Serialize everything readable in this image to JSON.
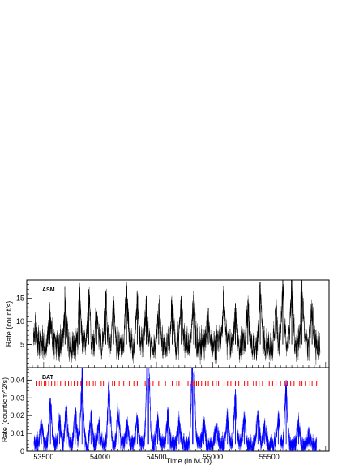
{
  "chart_data": [
    {
      "type": "line",
      "panel_label": "ASM",
      "ylabel": "Rate (count/s)",
      "xlim": [
        53350,
        56030
      ],
      "ylim": [
        0,
        19
      ],
      "yticks": [
        5,
        10,
        15
      ],
      "series": [
        {
          "color": "#000000",
          "style": "error-bars",
          "x_range": [
            53410,
            55950
          ],
          "baseline_level": 5,
          "typical_range": [
            1,
            10
          ],
          "peaks": [
            {
              "x": 53430,
              "y": 9.8
            },
            {
              "x": 53555,
              "y": 12.5
            },
            {
              "x": 53690,
              "y": 14.5
            },
            {
              "x": 53820,
              "y": 15.5
            },
            {
              "x": 53900,
              "y": 17.0
            },
            {
              "x": 53970,
              "y": 12.0
            },
            {
              "x": 54050,
              "y": 16.5
            },
            {
              "x": 54120,
              "y": 14.5
            },
            {
              "x": 54235,
              "y": 18.0
            },
            {
              "x": 54330,
              "y": 15.0
            },
            {
              "x": 54410,
              "y": 15.5
            },
            {
              "x": 54520,
              "y": 14.0
            },
            {
              "x": 54640,
              "y": 13.5
            },
            {
              "x": 54720,
              "y": 15.5
            },
            {
              "x": 54830,
              "y": 15.0
            },
            {
              "x": 54960,
              "y": 13.0
            },
            {
              "x": 55100,
              "y": 16.0
            },
            {
              "x": 55200,
              "y": 14.0
            },
            {
              "x": 55310,
              "y": 14.5
            },
            {
              "x": 55420,
              "y": 18.5
            },
            {
              "x": 55560,
              "y": 14.0
            },
            {
              "x": 55620,
              "y": 19.0
            },
            {
              "x": 55700,
              "y": 19.0
            },
            {
              "x": 55790,
              "y": 19.0
            },
            {
              "x": 55880,
              "y": 14.0
            }
          ]
        }
      ]
    },
    {
      "type": "line",
      "panel_label": "BAT",
      "ylabel": "Rate (count/cm^2/s)",
      "xlabel": "Time (in MJD)",
      "xlim": [
        53350,
        56030
      ],
      "ylim": [
        0,
        0.047
      ],
      "yticks": [
        0,
        0.01,
        0.02,
        0.03,
        0.04
      ],
      "xticks": [
        53500,
        54000,
        54500,
        55000,
        55500
      ],
      "series": [
        {
          "color": "#0000ff",
          "style": "error-bars",
          "x_range": [
            53415,
            55920
          ],
          "baseline_level": 0.004,
          "typical_range": [
            0,
            0.012
          ],
          "peaks": [
            {
              "x": 53480,
              "y": 0.018
            },
            {
              "x": 53560,
              "y": 0.03
            },
            {
              "x": 53640,
              "y": 0.02
            },
            {
              "x": 53700,
              "y": 0.025
            },
            {
              "x": 53780,
              "y": 0.024
            },
            {
              "x": 53840,
              "y": 0.047
            },
            {
              "x": 53920,
              "y": 0.022
            },
            {
              "x": 53990,
              "y": 0.018
            },
            {
              "x": 54080,
              "y": 0.04
            },
            {
              "x": 54160,
              "y": 0.024
            },
            {
              "x": 54240,
              "y": 0.018
            },
            {
              "x": 54330,
              "y": 0.02
            },
            {
              "x": 54420,
              "y": 0.047
            },
            {
              "x": 54430,
              "y": 0.041
            },
            {
              "x": 54510,
              "y": 0.02
            },
            {
              "x": 54600,
              "y": 0.022
            },
            {
              "x": 54700,
              "y": 0.018
            },
            {
              "x": 54820,
              "y": 0.047
            },
            {
              "x": 54830,
              "y": 0.044
            },
            {
              "x": 54920,
              "y": 0.018
            },
            {
              "x": 55030,
              "y": 0.016
            },
            {
              "x": 55130,
              "y": 0.02
            },
            {
              "x": 55200,
              "y": 0.035
            },
            {
              "x": 55280,
              "y": 0.02
            },
            {
              "x": 55400,
              "y": 0.023
            },
            {
              "x": 55460,
              "y": 0.015
            },
            {
              "x": 55580,
              "y": 0.021
            },
            {
              "x": 55650,
              "y": 0.04
            },
            {
              "x": 55760,
              "y": 0.018
            },
            {
              "x": 55850,
              "y": 0.01
            }
          ]
        }
      ],
      "markers": {
        "color": "#ff0000",
        "y_range": [
          0.0365,
          0.0395
        ],
        "x": [
          53440,
          53460,
          53480,
          53505,
          53520,
          53545,
          53570,
          53600,
          53625,
          53650,
          53690,
          53720,
          53745,
          53770,
          53800,
          53830,
          53880,
          53905,
          53940,
          53960,
          54010,
          54030,
          54080,
          54110,
          54130,
          54170,
          54210,
          54260,
          54300,
          54330,
          54400,
          54440,
          54470,
          54520,
          54580,
          54640,
          54680,
          54700,
          54780,
          54800,
          54820,
          54840,
          54855,
          54870,
          54900,
          54935,
          54960,
          55000,
          55030,
          55050,
          55100,
          55130,
          55160,
          55200,
          55230,
          55280,
          55310,
          55360,
          55385,
          55410,
          55440,
          55500,
          55530,
          55560,
          55600,
          55640,
          55660,
          55690,
          55720,
          55770,
          55790,
          55820,
          55860,
          55880,
          55920
        ]
      }
    }
  ]
}
